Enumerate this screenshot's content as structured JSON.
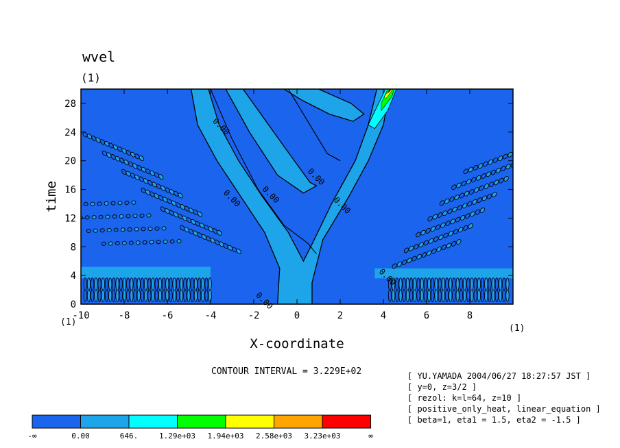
{
  "chart_data": {
    "type": "heatmap",
    "title": "wvel",
    "subtitle": "(1)",
    "xlabel": "X-coordinate",
    "ylabel": "time",
    "x_unit_left": "(1)",
    "x_unit_right": "(1)",
    "xlim": [
      -10,
      10
    ],
    "ylim": [
      0,
      30
    ],
    "x_ticks": [
      -10,
      -8,
      -6,
      -4,
      -2,
      0,
      2,
      4,
      6,
      8
    ],
    "x_tick_labels": [
      "-10",
      "-8",
      "-6",
      "-4",
      "-2",
      "0",
      "2",
      "4",
      "6",
      "8"
    ],
    "y_ticks": [
      0,
      4,
      8,
      12,
      16,
      20,
      24,
      28
    ],
    "y_tick_labels": [
      "0",
      "4",
      "8",
      "12",
      "16",
      "20",
      "24",
      "28"
    ],
    "contour_interval_text": "CONTOUR INTERVAL = 3.229E+02",
    "contour_labels": [
      {
        "text": "0.00",
        "x": -1.6,
        "y": 0.2
      },
      {
        "text": "0.00",
        "x": -3.1,
        "y": 14.5
      },
      {
        "text": "0.00",
        "x": -3.6,
        "y": 24.5
      },
      {
        "text": "0.00",
        "x": -1.3,
        "y": 15.0
      },
      {
        "text": "0.00",
        "x": 0.8,
        "y": 17.5
      },
      {
        "text": "0.00",
        "x": 2.0,
        "y": 13.5
      },
      {
        "text": "0.00",
        "x": 4.1,
        "y": 3.5
      }
    ],
    "colorbar": {
      "colors": [
        "#1b64ee",
        "#1ea4e8",
        "#00ffff",
        "#00ff00",
        "#ffff00",
        "#ffa500",
        "#ff0000"
      ],
      "labels": [
        "-∞",
        "0.00",
        "646.",
        "1.29e+03",
        "1.94e+03",
        "2.58e+03",
        "3.23e+03",
        "∞"
      ]
    },
    "grid": false,
    "legend": "bottom"
  },
  "notes": [
    "[ YU.YAMADA 2004/06/27 18:27:57 JST ]",
    "[ y=0, z=3/2 ]",
    "[ rezol: k=l=64, z=10 ]",
    "[ positive_only_heat, linear_equation ]",
    "[ beta=1, eta1 = 1.5, eta2 = -1.5 ]"
  ],
  "colors": {
    "background_field": "#1b64ee",
    "positive_band": "#1ea4e8",
    "contour_line": "#000000"
  }
}
